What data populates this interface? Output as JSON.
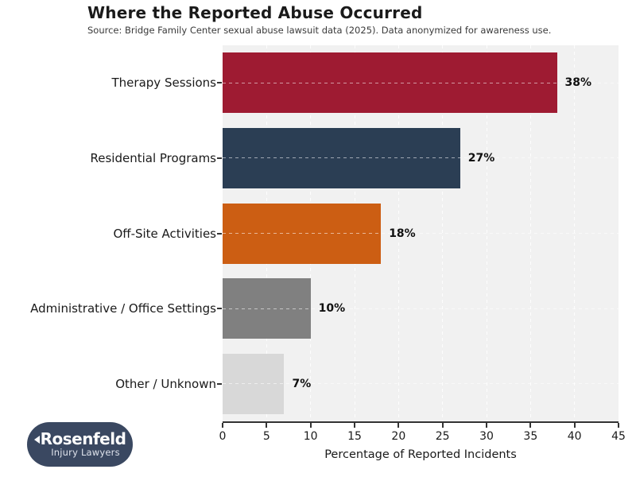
{
  "title": "Where the Reported Abuse Occurred",
  "subtitle": "Source: Bridge Family Center sexual abuse lawsuit data (2025). Data anonymized for awareness use.",
  "chart_data": {
    "type": "bar",
    "orientation": "horizontal",
    "title": "Where the Reported Abuse Occurred",
    "subtitle": "Source: Bridge Family Center sexual abuse lawsuit data (2025). Data anonymized for awareness use.",
    "categories": [
      "Therapy Sessions",
      "Residential Programs",
      "Off-Site Activities",
      "Administrative / Office Settings",
      "Other / Unknown"
    ],
    "values": [
      38,
      27,
      18,
      10,
      7
    ],
    "value_labels": [
      "38%",
      "27%",
      "18%",
      "10%",
      "7%"
    ],
    "bar_colors": [
      "#9e1b32",
      "#2b3e54",
      "#cc5e13",
      "#808080",
      "#d8d8d8"
    ],
    "xlabel": "Percentage of Reported Incidents",
    "ylabel": "",
    "xlim": [
      0,
      45
    ],
    "xticks": [
      0,
      5,
      10,
      15,
      20,
      25,
      30,
      35,
      40,
      45
    ],
    "grid": "dashed, white, vertical at xticks and horizontal at bar centers",
    "legend": "none",
    "plot_background": "#f1f1f1",
    "figure_background": "#ffffff"
  },
  "logo": {
    "primary": "Rosenfeld",
    "secondary": "Injury Lawyers",
    "background": "#3a4861"
  }
}
